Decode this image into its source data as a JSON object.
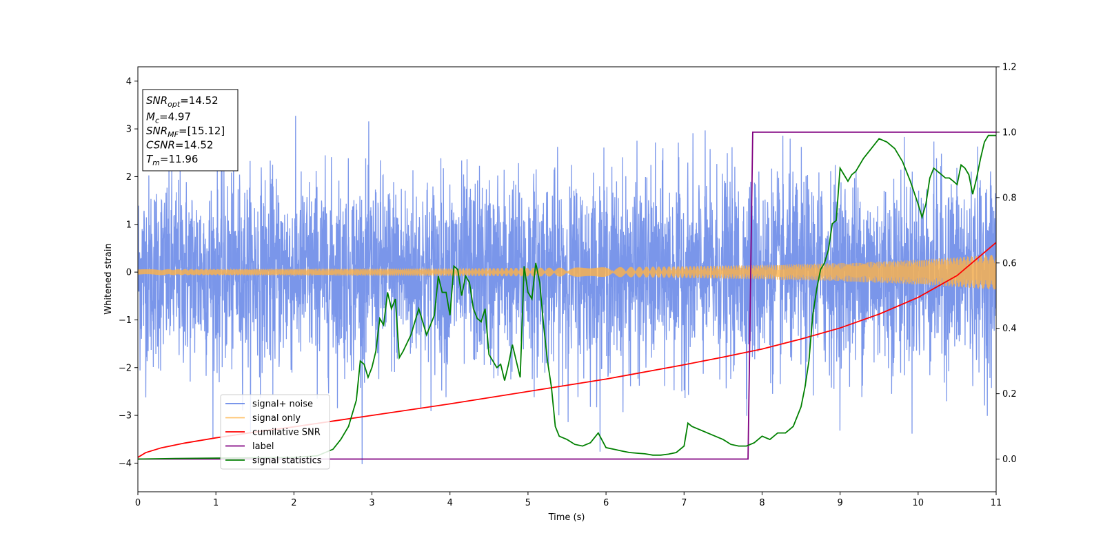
{
  "chart_data": {
    "type": "line",
    "xlabel": "Time (s)",
    "ylabel": "Whitened strain",
    "xlim": [
      0,
      11
    ],
    "ylim": [
      -4.6,
      4.3
    ],
    "y2lim": [
      -0.1,
      1.2
    ],
    "xticks": [
      "0",
      "1",
      "2",
      "3",
      "4",
      "5",
      "6",
      "7",
      "8",
      "9",
      "10",
      "11"
    ],
    "yticks": [
      "−4",
      "−3",
      "−2",
      "−1",
      "0",
      "1",
      "2",
      "3",
      "4"
    ],
    "y2ticks": [
      "0.0",
      "0.2",
      "0.4",
      "0.6",
      "0.8",
      "1.0",
      "1.2"
    ],
    "grid": false,
    "legend_position": "lower-left",
    "annotation": [
      {
        "base": "SNR",
        "sub": "opt",
        "rest": "=14.52"
      },
      {
        "base": "M",
        "sub": "c",
        "rest": "=4.97"
      },
      {
        "base": "SNR",
        "sub": "MF",
        "rest": "=[15.12]"
      },
      {
        "base": "CSNR",
        "sub": "",
        "rest": "=14.52"
      },
      {
        "base": "T",
        "sub": "m",
        "rest": "=11.96"
      }
    ],
    "series": [
      {
        "name": "signal+ noise",
        "color": "#4169E1",
        "axis": "left",
        "description_values": {
          "mean": 0,
          "typical_range": [
            -2.5,
            2.5
          ],
          "max": 3.9,
          "min": -4.15
        }
      },
      {
        "name": "signal only",
        "color": "#FFB347",
        "axis": "left",
        "envelope_x": [
          0,
          2,
          4,
          6,
          8,
          9,
          10,
          11
        ],
        "envelope_amp": [
          0.06,
          0.07,
          0.08,
          0.1,
          0.15,
          0.19,
          0.26,
          0.37
        ]
      },
      {
        "name": "cumilative SNR",
        "color": "#FF0000",
        "axis": "left",
        "x": [
          0,
          0.1,
          0.3,
          0.6,
          1,
          1.5,
          2,
          3,
          4,
          5,
          6,
          7,
          7.5,
          8,
          8.5,
          9,
          9.5,
          10,
          10.5,
          11
        ],
        "y": [
          -3.88,
          -3.78,
          -3.68,
          -3.58,
          -3.47,
          -3.35,
          -3.24,
          -3.0,
          -2.76,
          -2.5,
          -2.24,
          -1.94,
          -1.78,
          -1.61,
          -1.4,
          -1.17,
          -0.88,
          -0.53,
          -0.07,
          0.62
        ]
      },
      {
        "name": "label",
        "color": "#800080",
        "axis": "right",
        "x": [
          0,
          7.82,
          7.88,
          11
        ],
        "y": [
          0,
          0,
          1,
          1
        ]
      },
      {
        "name": "signal statistics",
        "color": "#008000",
        "axis": "right",
        "x": [
          0,
          0.5,
          1,
          1.5,
          2,
          2.3,
          2.5,
          2.6,
          2.7,
          2.8,
          2.85,
          2.9,
          2.95,
          3.0,
          3.05,
          3.1,
          3.15,
          3.2,
          3.25,
          3.3,
          3.35,
          3.4,
          3.5,
          3.6,
          3.7,
          3.8,
          3.85,
          3.9,
          3.95,
          4.0,
          4.05,
          4.1,
          4.15,
          4.2,
          4.25,
          4.3,
          4.35,
          4.4,
          4.45,
          4.5,
          4.55,
          4.6,
          4.65,
          4.7,
          4.75,
          4.8,
          4.85,
          4.9,
          4.95,
          5.0,
          5.05,
          5.1,
          5.15,
          5.2,
          5.25,
          5.3,
          5.35,
          5.4,
          5.5,
          5.6,
          5.7,
          5.8,
          5.9,
          6.0,
          6.1,
          6.2,
          6.3,
          6.4,
          6.5,
          6.6,
          6.7,
          6.8,
          6.9,
          7.0,
          7.05,
          7.1,
          7.2,
          7.3,
          7.4,
          7.5,
          7.6,
          7.7,
          7.8,
          7.9,
          8.0,
          8.1,
          8.2,
          8.3,
          8.4,
          8.5,
          8.55,
          8.6,
          8.65,
          8.7,
          8.75,
          8.8,
          8.85,
          8.9,
          8.95,
          9.0,
          9.05,
          9.1,
          9.15,
          9.2,
          9.3,
          9.4,
          9.5,
          9.6,
          9.7,
          9.8,
          9.9,
          10.0,
          10.05,
          10.1,
          10.15,
          10.2,
          10.25,
          10.3,
          10.35,
          10.4,
          10.45,
          10.5,
          10.55,
          10.6,
          10.65,
          10.7,
          10.75,
          10.8,
          10.85,
          10.9,
          10.95,
          11.0
        ],
        "y": [
          0,
          0.002,
          0.003,
          0.004,
          0.005,
          0.01,
          0.03,
          0.06,
          0.1,
          0.18,
          0.3,
          0.29,
          0.25,
          0.28,
          0.33,
          0.43,
          0.41,
          0.51,
          0.46,
          0.49,
          0.31,
          0.33,
          0.38,
          0.46,
          0.38,
          0.44,
          0.56,
          0.51,
          0.51,
          0.44,
          0.59,
          0.58,
          0.5,
          0.56,
          0.54,
          0.46,
          0.43,
          0.42,
          0.46,
          0.32,
          0.3,
          0.28,
          0.29,
          0.24,
          0.29,
          0.35,
          0.3,
          0.25,
          0.59,
          0.51,
          0.49,
          0.6,
          0.54,
          0.41,
          0.3,
          0.22,
          0.1,
          0.07,
          0.06,
          0.045,
          0.04,
          0.05,
          0.08,
          0.035,
          0.03,
          0.025,
          0.02,
          0.018,
          0.016,
          0.012,
          0.012,
          0.015,
          0.02,
          0.04,
          0.11,
          0.1,
          0.09,
          0.08,
          0.07,
          0.06,
          0.045,
          0.04,
          0.04,
          0.05,
          0.07,
          0.06,
          0.08,
          0.08,
          0.1,
          0.16,
          0.22,
          0.3,
          0.44,
          0.52,
          0.58,
          0.6,
          0.64,
          0.72,
          0.73,
          0.89,
          0.87,
          0.85,
          0.87,
          0.88,
          0.92,
          0.95,
          0.98,
          0.97,
          0.95,
          0.91,
          0.85,
          0.78,
          0.74,
          0.78,
          0.86,
          0.89,
          0.88,
          0.87,
          0.86,
          0.86,
          0.85,
          0.84,
          0.9,
          0.89,
          0.87,
          0.81,
          0.86,
          0.92,
          0.97,
          0.99,
          0.99,
          0.99
        ]
      }
    ]
  }
}
